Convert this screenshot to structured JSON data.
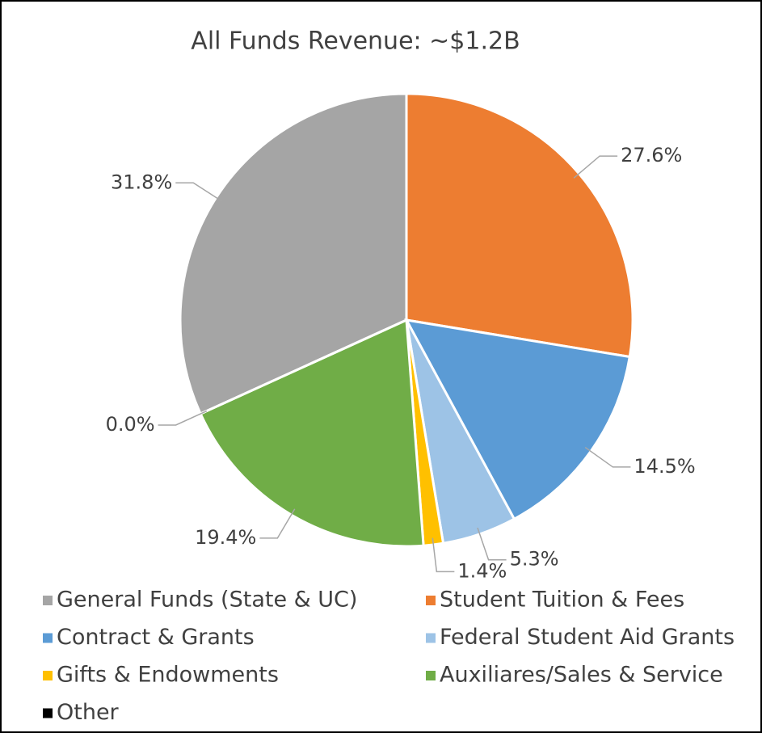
{
  "chart_data": {
    "type": "pie",
    "title": "All Funds Revenue: ~$1.2B",
    "categories": [
      "General Funds (State & UC)",
      "Student Tuition & Fees",
      "Contract & Grants",
      "Federal Student Aid Grants",
      "Gifts & Endowments",
      "Auxiliares/Sales & Service",
      "Other"
    ],
    "values": [
      31.8,
      27.6,
      14.5,
      5.3,
      1.4,
      19.4,
      0.0
    ],
    "value_labels": [
      "31.8%",
      "27.6%",
      "14.5%",
      "5.3%",
      "1.4%",
      "19.4%",
      "0.0%"
    ],
    "colors": [
      "#a5a5a5",
      "#ed7d31",
      "#5b9bd5",
      "#9dc3e6",
      "#ffc000",
      "#70ad47",
      "#000000"
    ],
    "legend": "bottom"
  }
}
